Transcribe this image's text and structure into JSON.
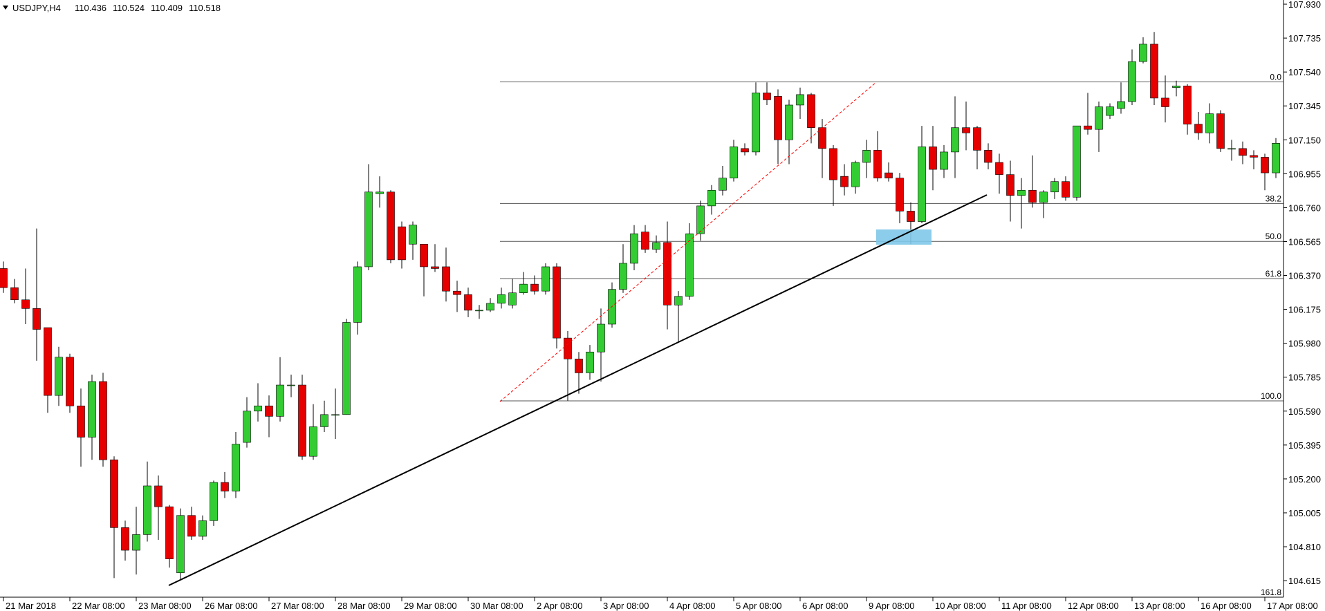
{
  "chart_data": {
    "type": "candlestick",
    "title": "USDJPY,H4",
    "ohlc_info": [
      110.436,
      110.524,
      110.409,
      110.518
    ],
    "up_color": "#33cc33",
    "down_color": "#e60000",
    "categories": [
      "21 Mar 2018",
      null,
      null,
      null,
      null,
      null,
      "22 Mar 08:00",
      null,
      null,
      null,
      null,
      null,
      "23 Mar 08:00",
      null,
      null,
      null,
      null,
      null,
      "26 Mar 08:00",
      null,
      null,
      null,
      null,
      null,
      "27 Mar 08:00",
      null,
      null,
      null,
      null,
      null,
      "28 Mar 08:00",
      null,
      null,
      null,
      null,
      null,
      "29 Mar 08:00",
      null,
      null,
      null,
      null,
      null,
      "30 Mar 08:00",
      null,
      null,
      null,
      null,
      null,
      "2 Apr 08:00",
      null,
      null,
      null,
      null,
      null,
      "3 Apr 08:00",
      null,
      null,
      null,
      null,
      null,
      "4 Apr 08:00",
      null,
      null,
      null,
      null,
      null,
      "5 Apr 08:00",
      null,
      null,
      null,
      null,
      null,
      "6 Apr 08:00",
      null,
      null,
      null,
      null,
      null,
      "9 Apr 08:00",
      null,
      null,
      null,
      null,
      null,
      "10 Apr 08:00",
      null,
      null,
      null,
      null,
      null,
      "11 Apr 08:00",
      null,
      null,
      null,
      null,
      null,
      "12 Apr 08:00",
      null,
      null,
      null,
      null,
      null,
      "13 Apr 08:00",
      null,
      null,
      null,
      null,
      null,
      "16 Apr 08:00",
      null,
      null,
      null,
      null,
      null,
      "17 Apr 08:00",
      null
    ],
    "open": [
      106.41,
      106.3,
      106.23,
      106.18,
      106.07,
      105.68,
      105.9,
      105.62,
      105.44,
      105.76,
      105.31,
      104.92,
      104.79,
      104.88,
      105.16,
      105.04,
      104.66,
      104.99,
      104.87,
      104.96,
      105.18,
      105.13,
      105.41,
      105.59,
      105.62,
      105.56,
      105.74,
      105.74,
      105.33,
      105.5,
      105.57,
      105.57,
      106.1,
      106.42,
      106.84,
      106.85,
      106.65,
      106.55,
      106.55,
      106.42,
      106.42,
      106.28,
      106.26,
      106.17,
      106.17,
      106.21,
      106.2,
      106.27,
      106.32,
      106.28,
      106.42,
      106.01,
      105.89,
      105.81,
      105.93,
      106.09,
      106.29,
      106.44,
      106.62,
      106.52,
      106.56,
      106.2,
      106.25,
      106.61,
      106.77,
      106.86,
      106.93,
      107.1,
      107.08,
      107.42,
      107.4,
      107.15,
      107.35,
      107.41,
      107.22,
      107.1,
      106.94,
      106.88,
      107.02,
      107.09,
      106.96,
      106.93,
      106.74,
      106.68,
      107.11,
      106.98,
      107.08,
      107.22,
      107.22,
      107.09,
      107.02,
      106.95,
      106.83,
      106.86,
      106.79,
      106.85,
      106.91,
      106.82,
      107.23,
      107.21,
      107.29,
      107.33,
      107.37,
      107.6,
      107.7,
      107.39,
      107.45,
      107.46,
      107.24,
      107.19,
      107.3,
      107.1,
      107.1,
      107.06,
      107.05,
      106.96
    ],
    "high": [
      106.45,
      106.35,
      106.41,
      106.64,
      106.07,
      105.96,
      105.92,
      105.72,
      105.8,
      105.81,
      105.33,
      104.96,
      105.04,
      105.3,
      105.22,
      105.05,
      105.03,
      105.04,
      104.99,
      105.19,
      105.24,
      105.47,
      105.67,
      105.75,
      105.68,
      105.9,
      105.8,
      105.8,
      105.63,
      105.65,
      105.72,
      106.12,
      106.45,
      107.01,
      106.94,
      106.86,
      106.68,
      106.68,
      106.55,
      106.55,
      106.53,
      106.34,
      106.3,
      106.2,
      106.24,
      106.3,
      106.35,
      106.39,
      106.37,
      106.44,
      106.44,
      106.05,
      105.93,
      105.97,
      106.18,
      106.33,
      106.55,
      106.66,
      106.66,
      106.6,
      106.68,
      106.28,
      106.67,
      106.8,
      106.89,
      107.0,
      107.15,
      107.13,
      107.48,
      107.48,
      107.44,
      107.38,
      107.45,
      107.42,
      107.27,
      107.12,
      107.01,
      107.03,
      107.15,
      107.2,
      107.02,
      106.96,
      106.79,
      107.23,
      107.23,
      107.12,
      107.4,
      107.37,
      107.23,
      107.13,
      107.07,
      107.03,
      106.93,
      107.06,
      106.86,
      106.93,
      106.94,
      107.23,
      107.42,
      107.37,
      107.36,
      107.48,
      107.67,
      107.74,
      107.77,
      107.52,
      107.49,
      107.47,
      107.31,
      107.36,
      107.32,
      107.15,
      107.14,
      107.09,
      107.07,
      107.16
    ],
    "low": [
      106.27,
      106.21,
      106.09,
      105.88,
      105.58,
      105.62,
      105.58,
      105.27,
      105.31,
      105.27,
      104.63,
      104.73,
      104.65,
      104.84,
      104.85,
      104.69,
      104.62,
      104.85,
      104.85,
      104.93,
      105.09,
      105.09,
      105.38,
      105.53,
      105.44,
      105.53,
      105.67,
      105.31,
      105.31,
      105.47,
      105.43,
      105.57,
      106.03,
      106.4,
      106.76,
      106.44,
      106.41,
      106.46,
      106.25,
      106.39,
      106.22,
      106.16,
      106.13,
      106.12,
      106.16,
      106.18,
      106.18,
      106.26,
      106.26,
      106.26,
      105.95,
      105.65,
      105.69,
      105.77,
      105.76,
      106.07,
      106.27,
      106.4,
      106.5,
      106.5,
      106.06,
      105.99,
      106.23,
      106.57,
      106.72,
      106.83,
      106.91,
      107.06,
      107.06,
      107.35,
      107.01,
      107.01,
      107.27,
      107.13,
      106.93,
      106.77,
      106.83,
      106.84,
      106.93,
      106.91,
      106.91,
      106.67,
      106.55,
      106.67,
      106.86,
      106.93,
      106.93,
      107.09,
      106.98,
      106.98,
      106.84,
      106.68,
      106.64,
      106.76,
      106.7,
      106.81,
      106.8,
      106.8,
      107.18,
      107.08,
      107.27,
      107.3,
      107.35,
      107.59,
      107.35,
      107.25,
      107.4,
      107.18,
      107.15,
      107.13,
      107.08,
      107.03,
      107.01,
      106.98,
      106.86,
      106.93
    ],
    "close": [
      106.3,
      106.23,
      106.18,
      106.06,
      105.68,
      105.9,
      105.62,
      105.44,
      105.76,
      105.31,
      104.92,
      104.79,
      104.88,
      105.16,
      105.04,
      104.74,
      104.99,
      104.87,
      104.96,
      105.18,
      105.13,
      105.4,
      105.59,
      105.62,
      105.56,
      105.74,
      105.74,
      105.33,
      105.5,
      105.57,
      105.57,
      106.1,
      106.42,
      106.85,
      106.85,
      106.46,
      106.46,
      106.66,
      106.42,
      106.41,
      106.28,
      106.26,
      106.17,
      106.17,
      106.21,
      106.26,
      106.27,
      106.32,
      106.28,
      106.42,
      106.01,
      105.89,
      105.81,
      105.93,
      106.09,
      106.29,
      106.44,
      106.61,
      106.52,
      106.56,
      106.2,
      106.25,
      106.61,
      106.77,
      106.86,
      106.93,
      107.11,
      107.08,
      107.42,
      107.38,
      107.15,
      107.35,
      107.41,
      107.22,
      107.1,
      106.92,
      106.88,
      107.02,
      107.09,
      106.93,
      106.93,
      106.74,
      106.68,
      107.11,
      106.98,
      107.08,
      107.22,
      107.19,
      107.09,
      107.02,
      106.95,
      106.83,
      106.86,
      106.79,
      106.85,
      106.91,
      106.82,
      107.23,
      107.21,
      107.34,
      107.34,
      107.37,
      107.6,
      107.7,
      107.39,
      107.34,
      107.46,
      107.24,
      107.19,
      107.3,
      107.1,
      107.1,
      107.06,
      107.05,
      106.96,
      107.13
    ],
    "ylim": [
      104.52,
      107.954
    ],
    "yticks": [
      {
        "value": 107.93,
        "label": "107.930"
      },
      107.735,
      {
        "value": 107.54,
        "label": "107.540"
      },
      107.345,
      {
        "value": 107.15,
        "label": "107.150"
      },
      106.955,
      {
        "value": 106.76,
        "label": "106.760"
      },
      106.565,
      {
        "value": 106.37,
        "label": "106.370"
      },
      106.175,
      {
        "value": 105.98,
        "label": "105.980"
      },
      105.785,
      {
        "value": 105.59,
        "label": "105.590"
      },
      105.395,
      {
        "value": 105.2,
        "label": "105.200"
      },
      105.005,
      {
        "value": 104.81,
        "label": "104.810"
      },
      104.615
    ],
    "fib_levels": [
      {
        "label": "0.0",
        "value": 107.483
      },
      {
        "label": "38.2",
        "value": 106.784
      },
      {
        "label": "50.0",
        "value": 106.566
      },
      {
        "label": "61.8",
        "value": 106.352
      },
      {
        "label": "100.0",
        "value": 105.649
      },
      {
        "label": "161.8",
        "value": 104.52
      }
    ]
  }
}
